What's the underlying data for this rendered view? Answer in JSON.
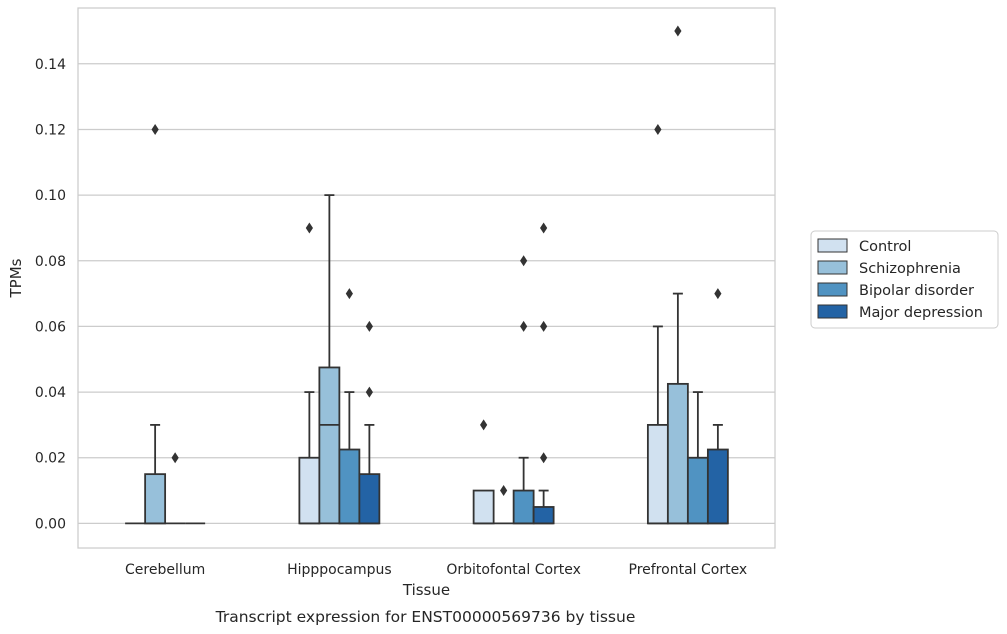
{
  "caption": "Transcript expression for ENST00000569736 by tissue",
  "chart_data": {
    "type": "box",
    "xlabel": "Tissue",
    "ylabel": "TPMs",
    "ylim": [
      -0.0075,
      0.157
    ],
    "yticks": [
      "0.00",
      "0.02",
      "0.04",
      "0.06",
      "0.08",
      "0.10",
      "0.12",
      "0.14"
    ],
    "ytick_values": [
      0,
      0.02,
      0.04,
      0.06,
      0.08,
      0.1,
      0.12,
      0.14
    ],
    "grid": true,
    "legend_position": "right",
    "categories": [
      "Cerebellum",
      "Hipppocampus",
      "Orbitofontal Cortex",
      "Prefrontal Cortex"
    ],
    "series": [
      {
        "name": "Control",
        "color": "#d1e1f0",
        "boxes": [
          {
            "whislo": 0,
            "q1": 0,
            "med": 0,
            "q3": 0,
            "whishi": 0,
            "fliers": []
          },
          {
            "whislo": 0,
            "q1": 0,
            "med": 0,
            "q3": 0.02,
            "whishi": 0.04,
            "fliers": [
              0.09
            ]
          },
          {
            "whislo": 0,
            "q1": 0,
            "med": 0,
            "q3": 0.01,
            "whishi": 0.01,
            "fliers": [
              0.03
            ]
          },
          {
            "whislo": 0,
            "q1": 0,
            "med": 0,
            "q3": 0.03,
            "whishi": 0.06,
            "fliers": [
              0.12
            ]
          }
        ]
      },
      {
        "name": "Schizophrenia",
        "color": "#97c0da",
        "boxes": [
          {
            "whislo": 0,
            "q1": 0,
            "med": 0,
            "q3": 0.015,
            "whishi": 0.03,
            "fliers": [
              0.12
            ]
          },
          {
            "whislo": 0,
            "q1": 0,
            "med": 0.03,
            "q3": 0.0475,
            "whishi": 0.1,
            "fliers": []
          },
          {
            "whislo": 0,
            "q1": 0,
            "med": 0,
            "q3": 0,
            "whishi": 0,
            "fliers": [
              0.01
            ]
          },
          {
            "whislo": 0,
            "q1": 0,
            "med": 0,
            "q3": 0.0425,
            "whishi": 0.07,
            "fliers": [
              0.15
            ]
          }
        ]
      },
      {
        "name": "Bipolar disorder",
        "color": "#5093c2",
        "boxes": [
          {
            "whislo": 0,
            "q1": 0,
            "med": 0,
            "q3": 0,
            "whishi": 0,
            "fliers": [
              0.02
            ]
          },
          {
            "whislo": 0,
            "q1": 0,
            "med": 0,
            "q3": 0.0225,
            "whishi": 0.04,
            "fliers": [
              0.07
            ]
          },
          {
            "whislo": 0,
            "q1": 0,
            "med": 0,
            "q3": 0.01,
            "whishi": 0.02,
            "fliers": [
              0.06,
              0.08
            ]
          },
          {
            "whislo": 0,
            "q1": 0,
            "med": 0,
            "q3": 0.02,
            "whishi": 0.04,
            "fliers": []
          }
        ]
      },
      {
        "name": "Major depression",
        "color": "#2363a5",
        "boxes": [
          {
            "whislo": 0,
            "q1": 0,
            "med": 0,
            "q3": 0,
            "whishi": 0,
            "fliers": []
          },
          {
            "whislo": 0,
            "q1": 0,
            "med": 0,
            "q3": 0.015,
            "whishi": 0.03,
            "fliers": [
              0.04,
              0.06
            ]
          },
          {
            "whislo": 0,
            "q1": 0,
            "med": 0,
            "q3": 0.005,
            "whishi": 0.01,
            "fliers": [
              0.02,
              0.06,
              0.09
            ]
          },
          {
            "whislo": 0,
            "q1": 0,
            "med": 0,
            "q3": 0.0225,
            "whishi": 0.03,
            "fliers": [
              0.07
            ]
          }
        ]
      }
    ]
  }
}
